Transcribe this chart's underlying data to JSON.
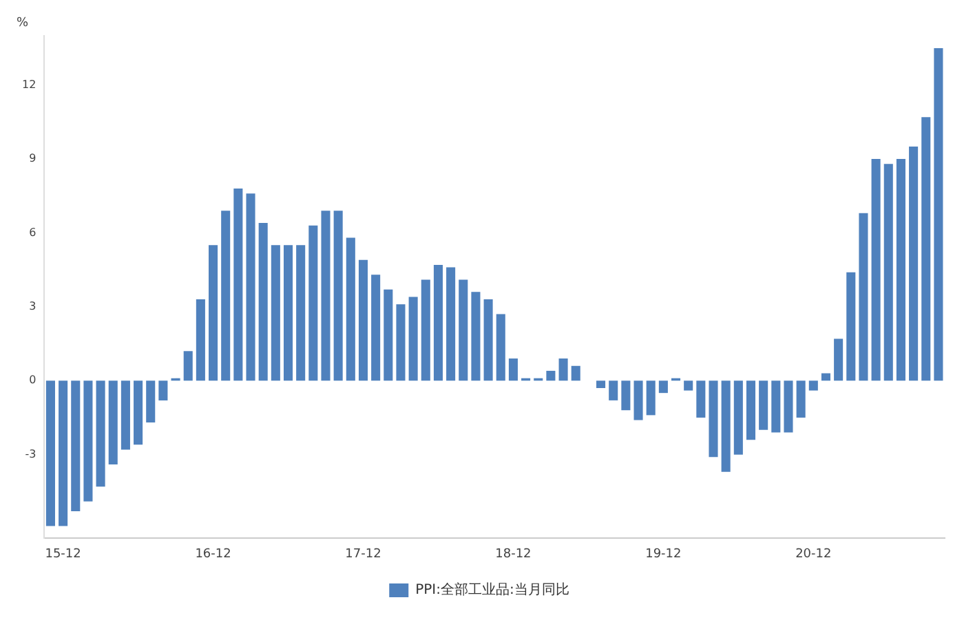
{
  "chart_data": {
    "type": "bar",
    "ylabel": "%",
    "categories": [
      null,
      "15-12",
      null,
      null,
      null,
      null,
      null,
      null,
      null,
      null,
      null,
      null,
      null,
      "16-12",
      null,
      null,
      null,
      null,
      null,
      null,
      null,
      null,
      null,
      null,
      null,
      "17-12",
      null,
      null,
      null,
      null,
      null,
      null,
      null,
      null,
      null,
      null,
      null,
      "18-12",
      null,
      null,
      null,
      null,
      null,
      null,
      null,
      null,
      null,
      null,
      null,
      "19-12",
      null,
      null,
      null,
      null,
      null,
      null,
      null,
      null,
      null,
      null,
      null,
      "20-12",
      null,
      null,
      null,
      null,
      null,
      null,
      null,
      null,
      null,
      null
    ],
    "series": [
      {
        "name": "PPI:全部工业品:当月同比",
        "color": "#4f81bd",
        "values": [
          -5.9,
          -5.9,
          -5.3,
          -4.9,
          -4.3,
          -3.4,
          -2.8,
          -2.6,
          -1.7,
          -0.8,
          0.1,
          1.2,
          3.3,
          5.5,
          6.9,
          7.8,
          7.6,
          6.4,
          5.5,
          5.5,
          5.5,
          6.3,
          6.9,
          6.9,
          5.8,
          4.9,
          4.3,
          3.7,
          3.1,
          3.4,
          4.1,
          4.7,
          4.6,
          4.1,
          3.6,
          3.3,
          2.7,
          0.9,
          0.1,
          0.1,
          0.4,
          0.9,
          0.6,
          0.0,
          -0.3,
          -0.8,
          -1.2,
          -1.6,
          -1.4,
          -0.5,
          0.1,
          -0.4,
          -1.5,
          -3.1,
          -3.7,
          -3.0,
          -2.4,
          -2.0,
          -2.1,
          -2.1,
          -1.5,
          -0.4,
          0.3,
          1.7,
          4.4,
          6.8,
          9.0,
          8.8,
          9.0,
          9.5,
          10.7,
          13.5
        ]
      }
    ],
    "ylim": [
      -6.4,
      14
    ],
    "yticks": [
      -3,
      0,
      3,
      6,
      9,
      12
    ],
    "grid": false,
    "legend": "bottom"
  }
}
